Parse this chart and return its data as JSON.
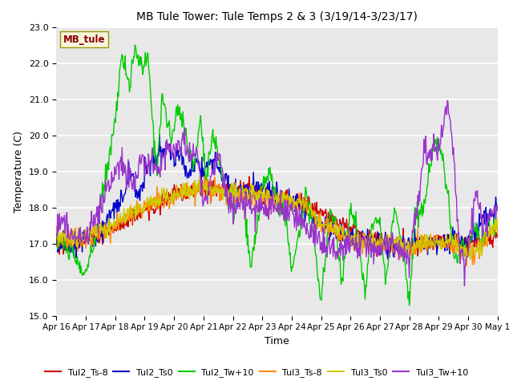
{
  "title": "MB Tule Tower: Tule Temps 2 & 3 (3/19/14-3/23/17)",
  "xlabel": "Time",
  "ylabel": "Temperature (C)",
  "ylim": [
    15.0,
    23.0
  ],
  "yticks": [
    15.0,
    16.0,
    17.0,
    18.0,
    19.0,
    20.0,
    21.0,
    22.0,
    23.0
  ],
  "plot_bg_color": "#e8e8e8",
  "grid_color": "#ffffff",
  "series": {
    "Tul2_Ts-8": {
      "color": "#cc0000",
      "lw": 1.0
    },
    "Tul2_Ts0": {
      "color": "#0000cc",
      "lw": 1.0
    },
    "Tul2_Tw+10": {
      "color": "#00cc00",
      "lw": 1.0
    },
    "Tul3_Ts-8": {
      "color": "#ff8800",
      "lw": 1.0
    },
    "Tul3_Ts0": {
      "color": "#cccc00",
      "lw": 1.0
    },
    "Tul3_Tw+10": {
      "color": "#9933cc",
      "lw": 1.0
    }
  },
  "xtick_labels": [
    "Apr 16",
    "Apr 17",
    "Apr 18",
    "Apr 19",
    "Apr 20",
    "Apr 21",
    "Apr 22",
    "Apr 23",
    "Apr 24",
    "Apr 25",
    "Apr 26",
    "Apr 27",
    "Apr 28",
    "Apr 29",
    "Apr 30",
    "May 1"
  ],
  "watermark_text": "MB_tule",
  "watermark_color": "#8b0000",
  "watermark_bg": "#f5f5dc",
  "title_fontsize": 10,
  "axis_fontsize": 9,
  "tick_fontsize": 8
}
